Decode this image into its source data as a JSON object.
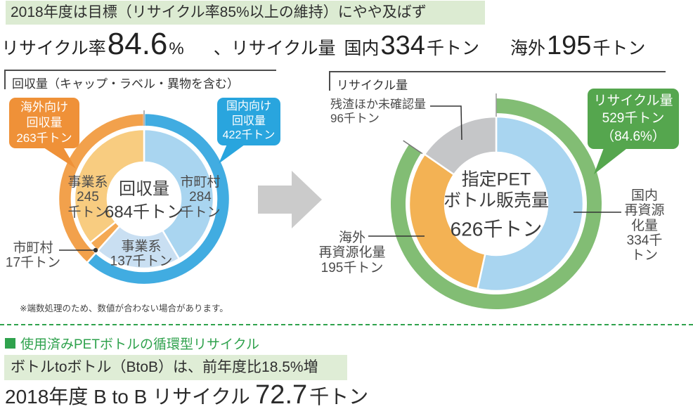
{
  "banner": {
    "text": "2018年度は目標（リサイクル率85%以上の維持）にやや及ばず"
  },
  "headline": {
    "rate_label": "リサイクル率",
    "rate_value": "84.6",
    "rate_unit": "%",
    "sep": "、リサイクル量",
    "domestic_label": "国内",
    "domestic_value": "334",
    "domestic_unit": "千トン",
    "overseas_label": "海外",
    "overseas_value": "195",
    "overseas_unit": "千トン"
  },
  "sections": {
    "left_title": "回収量（キャップ・ラベル・異物を含む）",
    "right_title": "リサイクル量"
  },
  "left_chart": {
    "callout_overseas": "海外向け\n回収量\n263千トン",
    "callout_domestic": "国内向け\n回収量\n422千トン",
    "label_business245": "事業系\n245\n千トン",
    "label_municipal284": "市町村\n284\n千トン",
    "label_business137": "事業系\n137千トン",
    "label_municipal17": "市町村\n17千トン"
  },
  "right_chart": {
    "callout_recycle": "リサイクル量\n529千トン\n（84.6%）",
    "label_residue": "残渣ほか未確認量\n 96千トン",
    "label_domestic": "国内\n再資源化量\n334千トン",
    "label_overseas": "海外\n再資源化量\n195千トン"
  },
  "note": "※端数処理のため、数値が合わない場合があります。",
  "bottom": {
    "section_heading": "使用済みPETボトルの循環型リサイクル",
    "highlight": "ボトルtoボトル（BtoB）は、前年度比18.5%増",
    "line_prefix": "2018年度 B to B リサイクル",
    "line_value": "72.7",
    "line_unit": "千トン"
  },
  "colors": {
    "banner_bg": "#DCEBD2",
    "highlight_bg": "#DFEDD6",
    "green": "#2FA24D",
    "callout_orange": "#EF9138",
    "callout_blue": "#29A5DE",
    "callout_green": "#55A64E",
    "arrow_gray": "#CBCBCB"
  },
  "chart_data": [
    {
      "type": "pie",
      "name": "回収量ドーナツ",
      "title": "回収量（キャップ・ラベル・異物を含む）",
      "unit": "千トン",
      "center": {
        "label": "回収量",
        "value": "684千トン"
      },
      "rings": [
        {
          "id": "inner",
          "segments": [
            {
              "label": "市町村",
              "value": 284,
              "color": "#A9D5F0"
            },
            {
              "label": "事業系",
              "value": 137,
              "color": "#C9DFF2"
            },
            {
              "label": "市町村",
              "value": 17,
              "color": "#F4A954"
            },
            {
              "label": "事業系",
              "value": 245,
              "color": "#F8CC80"
            }
          ]
        },
        {
          "id": "outer",
          "segments": [
            {
              "label": "国内向け回収量",
              "value": 422,
              "color": "#41ACE1"
            },
            {
              "label": "海外向け回収量",
              "value": 263,
              "color": "#F2A14C"
            }
          ]
        }
      ]
    },
    {
      "type": "pie",
      "name": "リサイクル量ドーナツ",
      "title": "リサイクル量",
      "unit": "千トン",
      "center": {
        "label": "指定PET\nボトル販売量",
        "value": "626千トン"
      },
      "rings": [
        {
          "id": "inner",
          "segments": [
            {
              "label": "国内再資源化量",
              "value": 334,
              "color": "#A9D5F0"
            },
            {
              "label": "海外再資源化量",
              "value": 195,
              "color": "#F3B254"
            },
            {
              "label": "残渣ほか未確認量",
              "value": 96,
              "color": "#C5C6C8"
            }
          ]
        },
        {
          "id": "outer",
          "total": 626,
          "segments": [
            {
              "label": "リサイクル量",
              "value": 529,
              "color": "#82BD74"
            }
          ]
        }
      ]
    }
  ]
}
